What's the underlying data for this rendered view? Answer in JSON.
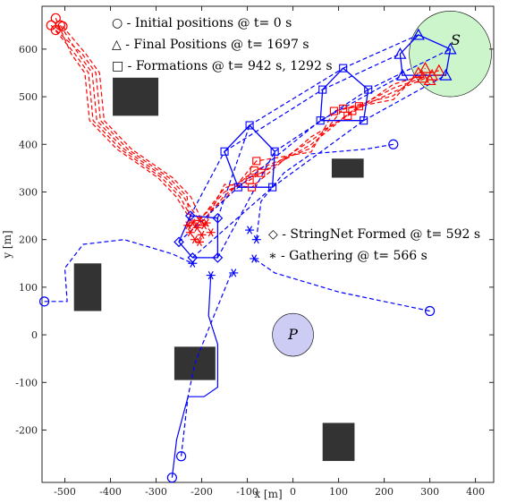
{
  "chart_data": {
    "type": "scatter",
    "xlabel": "x [m]",
    "ylabel": "y [m]",
    "xlim": [
      -550,
      440
    ],
    "ylim": [
      -310,
      690
    ],
    "xticks": [
      -500,
      -400,
      -300,
      -200,
      -100,
      0,
      100,
      200,
      300,
      400
    ],
    "yticks": [
      -200,
      -100,
      0,
      100,
      200,
      300,
      400,
      500,
      600
    ],
    "grid": false,
    "legend_top": [
      {
        "symbol": "circle",
        "text": "○ - Initial positions @ t= 0 s"
      },
      {
        "symbol": "triangle",
        "text": "△ - Final Positions @ t= 1697 s"
      },
      {
        "symbol": "square",
        "text": "□ - Formations @ t= 942 s, 1292 s"
      }
    ],
    "legend_mid": [
      {
        "symbol": "diamond",
        "text": "◇ - StringNet Formed @ t= 592 s"
      },
      {
        "symbol": "asterisk",
        "text": "∗ - Gathering @ t= 566 s"
      }
    ],
    "colors": {
      "defenders": "#0000ff",
      "attackers": "#ff0000",
      "obstacles": "#333333",
      "safe_area": "#ccf5cc",
      "protected_area": "#ccccf5"
    },
    "regions": [
      {
        "name": "S",
        "label": "S",
        "cx": 345,
        "cy": 590,
        "r": 90,
        "color": "#ccf5cc"
      },
      {
        "name": "P",
        "label": "P",
        "cx": 0,
        "cy": 0,
        "r": 45,
        "color": "#ccccf5"
      }
    ],
    "obstacles": [
      {
        "x": -395,
        "y": 460,
        "w": 100,
        "h": 80
      },
      {
        "x": -480,
        "y": 50,
        "w": 60,
        "h": 100
      },
      {
        "x": 85,
        "y": 330,
        "w": 70,
        "h": 40
      },
      {
        "x": -260,
        "y": -95,
        "w": 90,
        "h": 70
      },
      {
        "x": 65,
        "y": -265,
        "w": 70,
        "h": 80
      }
    ],
    "attackers": {
      "initial": [
        [
          -520,
          665
        ],
        [
          -530,
          650
        ],
        [
          -510,
          650
        ],
        [
          -520,
          640
        ],
        [
          -505,
          648
        ]
      ],
      "gather_cluster": [
        [
          -220,
          235
        ],
        [
          -210,
          225
        ],
        [
          -205,
          240
        ],
        [
          -225,
          215
        ],
        [
          -195,
          230
        ],
        [
          -215,
          200
        ],
        [
          -200,
          210
        ],
        [
          -190,
          235
        ],
        [
          -230,
          230
        ],
        [
          -205,
          195
        ],
        [
          -180,
          215
        ]
      ],
      "formation_1": [
        [
          -80,
          365
        ],
        [
          -85,
          345
        ],
        [
          -95,
          325
        ],
        [
          -70,
          340
        ],
        [
          -90,
          310
        ]
      ],
      "formation_2": [
        [
          90,
          470
        ],
        [
          110,
          475
        ],
        [
          130,
          470
        ],
        [
          145,
          480
        ],
        [
          120,
          460
        ]
      ],
      "final": [
        [
          275,
          550
        ],
        [
          290,
          560
        ],
        [
          305,
          545
        ],
        [
          285,
          540
        ],
        [
          320,
          555
        ],
        [
          300,
          535
        ]
      ]
    },
    "defenders": {
      "initial": [
        [
          -545,
          70
        ],
        [
          -265,
          -300
        ],
        [
          -245,
          -255
        ],
        [
          220,
          400
        ],
        [
          300,
          50
        ]
      ],
      "stringnet": [
        [
          -165,
          245
        ],
        [
          -225,
          250
        ],
        [
          -250,
          195
        ],
        [
          -220,
          162
        ],
        [
          -165,
          162
        ]
      ],
      "gathering": [
        [
          -220,
          150
        ],
        [
          -180,
          125
        ],
        [
          -130,
          130
        ],
        [
          -85,
          160
        ],
        [
          -80,
          200
        ],
        [
          -95,
          220
        ]
      ],
      "formation_1": [
        [
          -95,
          440
        ],
        [
          -150,
          385
        ],
        [
          -120,
          310
        ],
        [
          -45,
          310
        ],
        [
          -40,
          385
        ]
      ],
      "formation_2": [
        [
          110,
          560
        ],
        [
          65,
          515
        ],
        [
          60,
          450
        ],
        [
          155,
          450
        ],
        [
          165,
          515
        ]
      ],
      "final": [
        [
          275,
          630
        ],
        [
          235,
          590
        ],
        [
          240,
          545
        ],
        [
          335,
          545
        ],
        [
          345,
          600
        ]
      ]
    }
  }
}
